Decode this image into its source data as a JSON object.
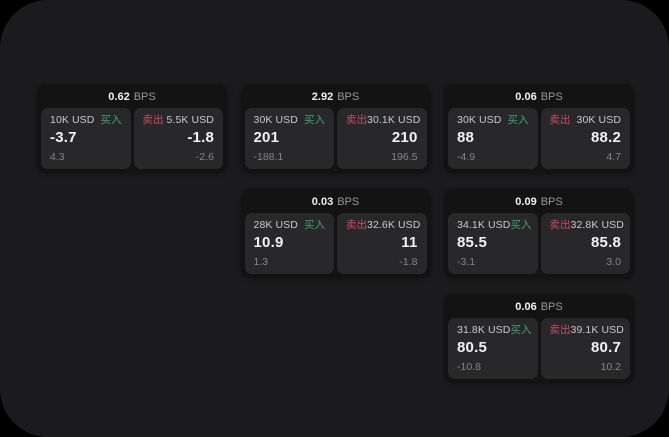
{
  "labels": {
    "buy": "买入",
    "sell": "卖出",
    "bps_unit": "BPS"
  },
  "colors": {
    "background": "#000000",
    "panel": "#1b1b1d",
    "card": "#131314",
    "tile": "#28282a",
    "buy": "#3aa571",
    "sell": "#cc4a62",
    "value_text": "#f2f2f3",
    "label_text": "#c9c9cb",
    "muted_text": "#85858a",
    "bps_text": "#98989c"
  },
  "cards": [
    {
      "row": 1,
      "col": 1,
      "bps": "0.62",
      "buy": {
        "amount": "10K USD",
        "price": "-3.7",
        "change": "4.3"
      },
      "sell": {
        "amount": "5.5K USD",
        "price": "-1.8",
        "change": "-2.6"
      }
    },
    {
      "row": 1,
      "col": 2,
      "bps": "2.92",
      "buy": {
        "amount": "30K USD",
        "price": "201",
        "change": "-188.1"
      },
      "sell": {
        "amount": "30.1K USD",
        "price": "210",
        "change": "196.5"
      }
    },
    {
      "row": 1,
      "col": 3,
      "bps": "0.06",
      "buy": {
        "amount": "30K USD",
        "price": "88",
        "change": "-4.9"
      },
      "sell": {
        "amount": "30K USD",
        "price": "88.2",
        "change": "4.7"
      }
    },
    {
      "row": 2,
      "col": 2,
      "bps": "0.03",
      "buy": {
        "amount": "28K USD",
        "price": "10.9",
        "change": "1.3"
      },
      "sell": {
        "amount": "32.6K USD",
        "price": "11",
        "change": "-1.8"
      }
    },
    {
      "row": 2,
      "col": 3,
      "bps": "0.09",
      "buy": {
        "amount": "34.1K USD",
        "price": "85.5",
        "change": "-3.1"
      },
      "sell": {
        "amount": "32.8K USD",
        "price": "85.8",
        "change": "3.0"
      }
    },
    {
      "row": 3,
      "col": 3,
      "bps": "0.06",
      "buy": {
        "amount": "31.8K USD",
        "price": "80.5",
        "change": "-10.8"
      },
      "sell": {
        "amount": "39.1K USD",
        "price": "80.7",
        "change": "10.2"
      }
    }
  ]
}
